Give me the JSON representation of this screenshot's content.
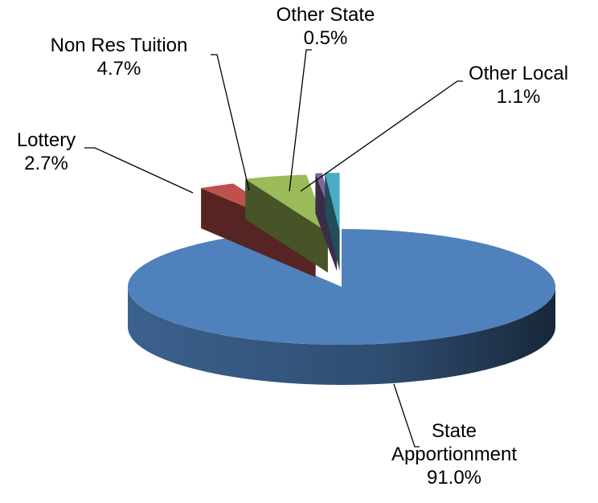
{
  "chart_data": {
    "type": "pie",
    "categories": [
      "State Apportionment",
      "Lottery",
      "Non Res Tuition",
      "Other State",
      "Other Local"
    ],
    "values": [
      91.0,
      2.7,
      4.7,
      0.5,
      1.1
    ],
    "value_labels": [
      "91.0%",
      "2.7%",
      "4.7%",
      "0.5%",
      "1.1%"
    ],
    "colors": [
      "#4f81bd",
      "#c0504d",
      "#9bbb59",
      "#8064a2",
      "#4bacc6"
    ]
  }
}
